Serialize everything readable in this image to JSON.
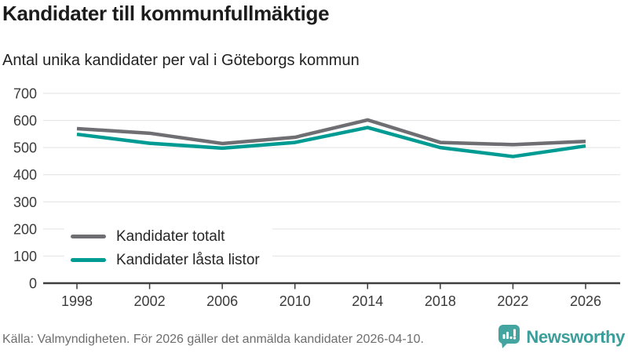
{
  "header": {
    "title": "Kandidater till kommunfullmäktige",
    "subtitle": "Antal unika kandidater per val i Göteborgs kommun"
  },
  "chart_data": {
    "type": "line",
    "title": "Kandidater till kommunfullmäktige",
    "subtitle": "Antal unika kandidater per val i Göteborgs kommun",
    "x": [
      1998,
      2002,
      2006,
      2010,
      2014,
      2018,
      2022,
      2026
    ],
    "series": [
      {
        "name": "Kandidater totalt",
        "color": "#6f6f73",
        "values": [
          570,
          553,
          515,
          538,
          602,
          519,
          511,
          523
        ]
      },
      {
        "name": "Kandidater låsta listor",
        "color": "#009b92",
        "values": [
          549,
          516,
          498,
          519,
          574,
          500,
          467,
          506
        ]
      }
    ],
    "xlabel": "",
    "ylabel": "",
    "ylim": [
      0,
      700
    ],
    "ytick_interval": 100,
    "grid": true,
    "legend_position": "inside-bottom-left"
  },
  "footer": {
    "source": "Källa: Valmyndigheten. För 2026 gäller det anmälda kandidater 2026-04-10.",
    "brand": "Newsworthy"
  },
  "colors": {
    "grid": "#e2e2e2",
    "axis": "#3f3f3f",
    "axis_text": "#3b3b3b",
    "series_total": "#6f6f73",
    "series_locked": "#009b92",
    "brand_teal": "#44a5a0"
  }
}
